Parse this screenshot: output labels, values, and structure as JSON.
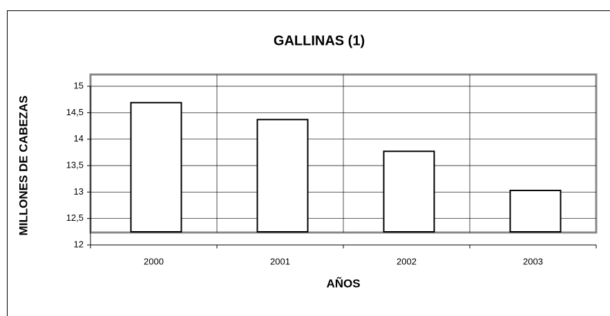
{
  "chart_data": {
    "type": "bar",
    "title": "GALLINAS (1)",
    "x_label": "AÑOS",
    "y_label": "MILLONES DE CABEZAS",
    "categories": [
      "2000",
      "2001",
      "2002",
      "2003"
    ],
    "values": [
      14.69,
      14.37,
      13.77,
      13.03
    ],
    "color": "#ffffff",
    "ylim": [
      12,
      15
    ],
    "yticks": [
      12,
      {
        "value": 12.5,
        "label": "12,5"
      },
      13,
      {
        "value": 13.5,
        "label": "13,5"
      },
      14,
      {
        "value": 14.5,
        "label": "14,5"
      },
      15
    ],
    "grid": true
  }
}
